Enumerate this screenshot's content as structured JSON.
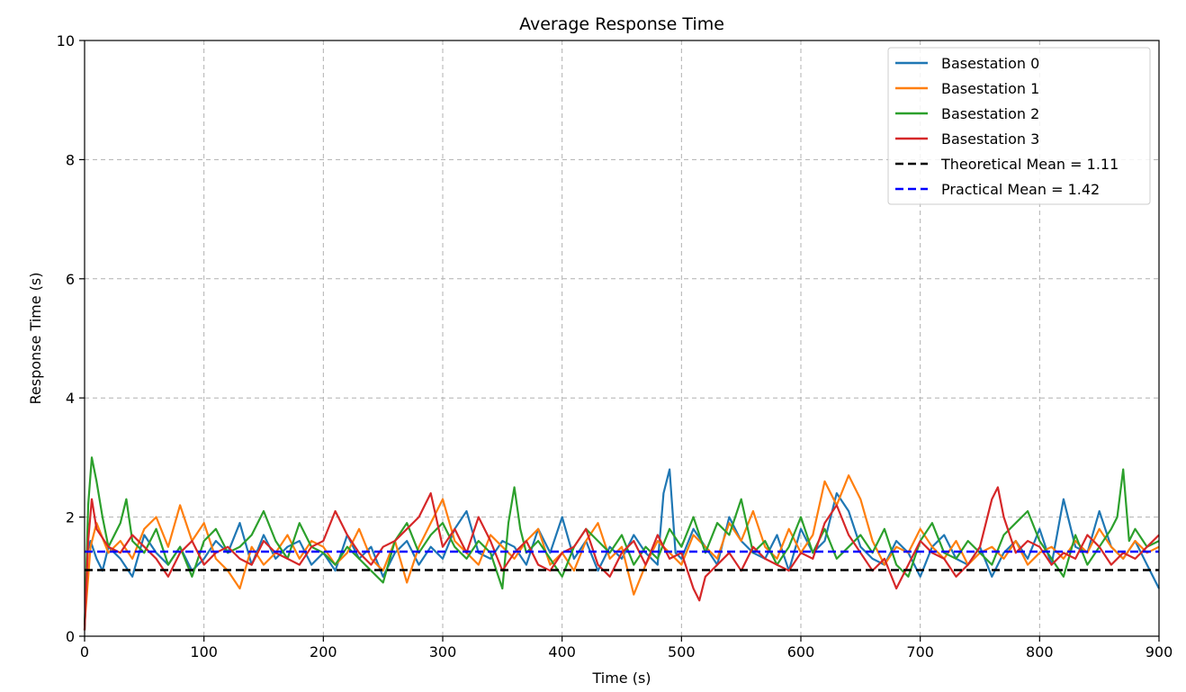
{
  "chart_data": {
    "type": "line",
    "title": "Average Response Time",
    "xlabel": "Time (s)",
    "ylabel": "Response Time (s)",
    "xlim": [
      0,
      900
    ],
    "ylim": [
      0,
      10
    ],
    "xticks": [
      0,
      100,
      200,
      300,
      400,
      500,
      600,
      700,
      800,
      900
    ],
    "yticks": [
      0,
      2,
      4,
      6,
      8,
      10
    ],
    "grid": true,
    "legend_position": "top-right",
    "series": [
      {
        "name": "Basestation 0",
        "color": "#1f77b4",
        "x": [
          0,
          2,
          5,
          10,
          15,
          20,
          30,
          40,
          50,
          60,
          70,
          80,
          90,
          100,
          110,
          120,
          130,
          140,
          150,
          160,
          170,
          180,
          190,
          200,
          210,
          220,
          230,
          240,
          250,
          260,
          270,
          280,
          290,
          300,
          310,
          320,
          330,
          340,
          350,
          360,
          370,
          380,
          390,
          400,
          410,
          420,
          430,
          440,
          450,
          460,
          470,
          480,
          485,
          490,
          495,
          500,
          510,
          520,
          530,
          540,
          550,
          560,
          570,
          580,
          590,
          600,
          610,
          620,
          630,
          640,
          650,
          660,
          670,
          680,
          690,
          700,
          710,
          720,
          730,
          740,
          750,
          760,
          770,
          780,
          790,
          800,
          810,
          820,
          830,
          840,
          850,
          860,
          870,
          880,
          890,
          900
        ],
        "y": [
          0.1,
          1.4,
          1.6,
          1.3,
          1.1,
          1.5,
          1.3,
          1.0,
          1.7,
          1.4,
          1.2,
          1.5,
          1.1,
          1.3,
          1.6,
          1.4,
          1.9,
          1.2,
          1.7,
          1.3,
          1.5,
          1.6,
          1.2,
          1.4,
          1.1,
          1.7,
          1.3,
          1.5,
          1.0,
          1.4,
          1.6,
          1.2,
          1.5,
          1.3,
          1.8,
          2.1,
          1.4,
          1.3,
          1.6,
          1.5,
          1.2,
          1.8,
          1.4,
          2.0,
          1.3,
          1.6,
          1.1,
          1.5,
          1.3,
          1.7,
          1.4,
          1.2,
          2.4,
          2.8,
          1.4,
          1.3,
          1.8,
          1.5,
          1.2,
          2.0,
          1.6,
          1.4,
          1.3,
          1.7,
          1.1,
          1.8,
          1.4,
          1.6,
          2.4,
          2.1,
          1.5,
          1.3,
          1.2,
          1.6,
          1.4,
          1.0,
          1.5,
          1.7,
          1.3,
          1.2,
          1.5,
          1.0,
          1.4,
          1.6,
          1.3,
          1.8,
          1.2,
          2.3,
          1.5,
          1.4,
          2.1,
          1.5,
          1.3,
          1.6,
          1.2,
          0.8
        ]
      },
      {
        "name": "Basestation 1",
        "color": "#ff7f0e",
        "x": [
          0,
          5,
          10,
          20,
          30,
          40,
          50,
          60,
          70,
          80,
          90,
          100,
          110,
          120,
          130,
          140,
          150,
          160,
          170,
          180,
          190,
          200,
          210,
          220,
          230,
          240,
          250,
          260,
          270,
          280,
          290,
          300,
          310,
          320,
          330,
          340,
          350,
          360,
          370,
          380,
          390,
          400,
          410,
          420,
          430,
          440,
          450,
          460,
          470,
          480,
          490,
          500,
          510,
          520,
          530,
          540,
          550,
          560,
          570,
          580,
          590,
          600,
          610,
          620,
          630,
          640,
          650,
          660,
          670,
          680,
          690,
          700,
          710,
          720,
          730,
          740,
          750,
          760,
          770,
          780,
          790,
          800,
          810,
          820,
          830,
          840,
          850,
          860,
          870,
          880,
          890,
          900
        ],
        "y": [
          0.2,
          1.5,
          1.9,
          1.4,
          1.6,
          1.3,
          1.8,
          2.0,
          1.5,
          2.2,
          1.6,
          1.9,
          1.3,
          1.1,
          0.8,
          1.5,
          1.2,
          1.4,
          1.7,
          1.3,
          1.6,
          1.5,
          1.2,
          1.4,
          1.8,
          1.3,
          1.1,
          1.6,
          0.9,
          1.5,
          1.9,
          2.3,
          1.6,
          1.4,
          1.2,
          1.7,
          1.5,
          1.3,
          1.6,
          1.8,
          1.2,
          1.4,
          1.1,
          1.6,
          1.9,
          1.3,
          1.5,
          0.7,
          1.2,
          1.6,
          1.4,
          1.2,
          1.7,
          1.5,
          1.3,
          1.9,
          1.6,
          2.1,
          1.5,
          1.3,
          1.8,
          1.4,
          1.7,
          2.6,
          2.2,
          2.7,
          2.3,
          1.6,
          1.2,
          1.5,
          1.4,
          1.8,
          1.5,
          1.3,
          1.6,
          1.2,
          1.4,
          1.5,
          1.3,
          1.6,
          1.2,
          1.4,
          1.5,
          1.3,
          1.6,
          1.4,
          1.8,
          1.5,
          1.3,
          1.6,
          1.4,
          1.5
        ]
      },
      {
        "name": "Basestation 2",
        "color": "#2ca02c",
        "x": [
          0,
          3,
          6,
          10,
          15,
          20,
          30,
          35,
          40,
          50,
          60,
          70,
          80,
          90,
          100,
          110,
          120,
          130,
          140,
          150,
          160,
          170,
          180,
          190,
          200,
          210,
          220,
          230,
          240,
          250,
          260,
          270,
          280,
          290,
          300,
          310,
          320,
          330,
          340,
          350,
          355,
          360,
          365,
          370,
          380,
          390,
          400,
          410,
          420,
          430,
          440,
          450,
          460,
          470,
          480,
          490,
          500,
          510,
          520,
          530,
          540,
          550,
          560,
          570,
          580,
          590,
          600,
          610,
          620,
          630,
          640,
          650,
          660,
          670,
          680,
          690,
          700,
          710,
          720,
          730,
          740,
          750,
          760,
          770,
          780,
          790,
          800,
          810,
          820,
          830,
          840,
          850,
          860,
          865,
          870,
          875,
          880,
          890,
          900
        ],
        "y": [
          0.1,
          2.2,
          3.0,
          2.6,
          2.0,
          1.5,
          1.9,
          2.3,
          1.6,
          1.4,
          1.8,
          1.2,
          1.5,
          1.0,
          1.6,
          1.8,
          1.4,
          1.5,
          1.7,
          2.1,
          1.6,
          1.3,
          1.9,
          1.5,
          1.4,
          1.2,
          1.5,
          1.3,
          1.1,
          0.9,
          1.6,
          1.9,
          1.4,
          1.7,
          1.9,
          1.5,
          1.3,
          1.6,
          1.4,
          0.8,
          1.9,
          2.5,
          1.8,
          1.4,
          1.6,
          1.3,
          1.0,
          1.5,
          1.8,
          1.6,
          1.4,
          1.7,
          1.2,
          1.5,
          1.3,
          1.8,
          1.5,
          2.0,
          1.4,
          1.9,
          1.7,
          2.3,
          1.4,
          1.6,
          1.2,
          1.5,
          2.0,
          1.4,
          1.8,
          1.3,
          1.5,
          1.7,
          1.4,
          1.8,
          1.2,
          1.0,
          1.6,
          1.9,
          1.4,
          1.3,
          1.6,
          1.4,
          1.2,
          1.7,
          1.9,
          2.1,
          1.6,
          1.3,
          1.0,
          1.7,
          1.2,
          1.5,
          1.8,
          2.0,
          2.8,
          1.6,
          1.8,
          1.5,
          1.6
        ]
      },
      {
        "name": "Basestation 3",
        "color": "#d62728",
        "x": [
          0,
          3,
          6,
          10,
          20,
          30,
          40,
          50,
          60,
          70,
          80,
          90,
          100,
          110,
          120,
          130,
          140,
          150,
          160,
          170,
          180,
          190,
          200,
          210,
          220,
          230,
          240,
          250,
          260,
          270,
          280,
          290,
          300,
          310,
          320,
          330,
          340,
          350,
          360,
          370,
          380,
          390,
          400,
          410,
          420,
          430,
          440,
          450,
          460,
          470,
          480,
          490,
          500,
          510,
          515,
          520,
          530,
          540,
          550,
          560,
          570,
          580,
          590,
          600,
          610,
          620,
          630,
          640,
          650,
          660,
          670,
          680,
          690,
          700,
          710,
          720,
          730,
          740,
          750,
          760,
          765,
          770,
          780,
          790,
          800,
          810,
          820,
          830,
          840,
          850,
          860,
          870,
          880,
          890,
          900
        ],
        "y": [
          0.1,
          1.6,
          2.3,
          1.8,
          1.5,
          1.4,
          1.7,
          1.5,
          1.3,
          1.0,
          1.4,
          1.6,
          1.2,
          1.4,
          1.5,
          1.3,
          1.2,
          1.6,
          1.4,
          1.3,
          1.2,
          1.5,
          1.6,
          2.1,
          1.7,
          1.4,
          1.2,
          1.5,
          1.6,
          1.8,
          2.0,
          2.4,
          1.5,
          1.8,
          1.4,
          2.0,
          1.6,
          1.1,
          1.4,
          1.6,
          1.2,
          1.1,
          1.4,
          1.5,
          1.8,
          1.2,
          1.0,
          1.4,
          1.6,
          1.2,
          1.7,
          1.3,
          1.4,
          0.8,
          0.6,
          1.0,
          1.2,
          1.4,
          1.1,
          1.5,
          1.3,
          1.2,
          1.1,
          1.4,
          1.3,
          1.9,
          2.2,
          1.7,
          1.4,
          1.1,
          1.3,
          0.8,
          1.2,
          1.6,
          1.4,
          1.3,
          1.0,
          1.2,
          1.5,
          2.3,
          2.5,
          2.0,
          1.4,
          1.6,
          1.5,
          1.2,
          1.4,
          1.3,
          1.7,
          1.5,
          1.2,
          1.4,
          1.3,
          1.5,
          1.7
        ]
      },
      {
        "name": "Theoretical Mean = 1.11",
        "color": "#000000",
        "dashed": true,
        "x": [
          0,
          900
        ],
        "y": [
          1.11,
          1.11
        ]
      },
      {
        "name": "Practical Mean = 1.42",
        "color": "#0000ff",
        "dashed": true,
        "x": [
          0,
          900
        ],
        "y": [
          1.42,
          1.42
        ]
      }
    ]
  }
}
